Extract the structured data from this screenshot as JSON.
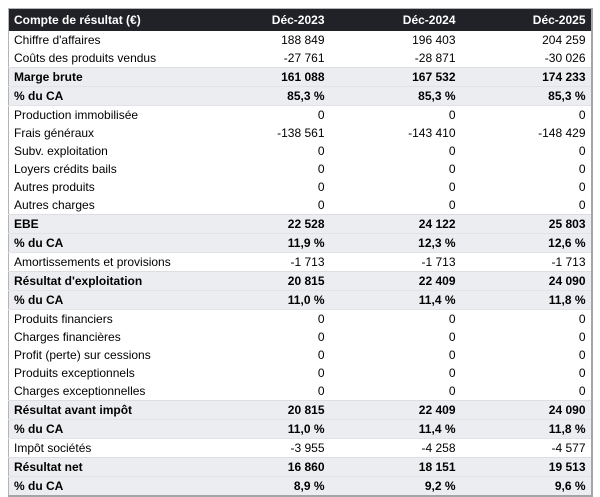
{
  "table": {
    "header": {
      "label": "Compte de résultat (€)",
      "columns": [
        "Déc-2023",
        "Déc-2024",
        "Déc-2025"
      ]
    },
    "rows": [
      {
        "label": "Chiffre d'affaires",
        "values": [
          "188 849",
          "196 403",
          "204 259"
        ],
        "emphasis": false
      },
      {
        "label": "Coûts des produits vendus",
        "values": [
          "-27 761",
          "-28 871",
          "-30 026"
        ],
        "emphasis": false
      },
      {
        "label": "Marge brute",
        "values": [
          "161 088",
          "167 532",
          "174 233"
        ],
        "emphasis": true
      },
      {
        "label": "% du CA",
        "values": [
          "85,3 %",
          "85,3 %",
          "85,3 %"
        ],
        "emphasis": true
      },
      {
        "label": "Production immobilisée",
        "values": [
          "0",
          "0",
          "0"
        ],
        "emphasis": false
      },
      {
        "label": "Frais généraux",
        "values": [
          "-138 561",
          "-143 410",
          "-148 429"
        ],
        "emphasis": false
      },
      {
        "label": "Subv. exploitation",
        "values": [
          "0",
          "0",
          "0"
        ],
        "emphasis": false
      },
      {
        "label": "Loyers crédits bails",
        "values": [
          "0",
          "0",
          "0"
        ],
        "emphasis": false
      },
      {
        "label": "Autres produits",
        "values": [
          "0",
          "0",
          "0"
        ],
        "emphasis": false
      },
      {
        "label": "Autres charges",
        "values": [
          "0",
          "0",
          "0"
        ],
        "emphasis": false
      },
      {
        "label": "EBE",
        "values": [
          "22 528",
          "24 122",
          "25 803"
        ],
        "emphasis": true
      },
      {
        "label": "% du CA",
        "values": [
          "11,9 %",
          "12,3 %",
          "12,6 %"
        ],
        "emphasis": true
      },
      {
        "label": "Amortissements et provisions",
        "values": [
          "-1 713",
          "-1 713",
          "-1 713"
        ],
        "emphasis": false
      },
      {
        "label": "Résultat d'exploitation",
        "values": [
          "20 815",
          "22 409",
          "24 090"
        ],
        "emphasis": true
      },
      {
        "label": "% du CA",
        "values": [
          "11,0 %",
          "11,4 %",
          "11,8 %"
        ],
        "emphasis": true
      },
      {
        "label": "Produits financiers",
        "values": [
          "0",
          "0",
          "0"
        ],
        "emphasis": false
      },
      {
        "label": "Charges financières",
        "values": [
          "0",
          "0",
          "0"
        ],
        "emphasis": false
      },
      {
        "label": "Profit (perte) sur cessions",
        "values": [
          "0",
          "0",
          "0"
        ],
        "emphasis": false
      },
      {
        "label": "Produits exceptionnels",
        "values": [
          "0",
          "0",
          "0"
        ],
        "emphasis": false
      },
      {
        "label": "Charges exceptionnelles",
        "values": [
          "0",
          "0",
          "0"
        ],
        "emphasis": false
      },
      {
        "label": "Résultat avant impôt",
        "values": [
          "20 815",
          "22 409",
          "24 090"
        ],
        "emphasis": true
      },
      {
        "label": "% du CA",
        "values": [
          "11,0 %",
          "11,4 %",
          "11,8 %"
        ],
        "emphasis": true
      },
      {
        "label": "Impôt sociétés",
        "values": [
          "-3 955",
          "-4 258",
          "-4 577"
        ],
        "emphasis": false
      },
      {
        "label": "Résultat net",
        "values": [
          "16 860",
          "18 151",
          "19 513"
        ],
        "emphasis": true
      },
      {
        "label": "% du CA",
        "values": [
          "8,9 %",
          "9,2 %",
          "9,6 %"
        ],
        "emphasis": true
      }
    ]
  },
  "colors": {
    "header_bg": "#212227",
    "header_text": "#ffffff",
    "emphasis_row_bg": "#ecedf0",
    "outer_border": "#a2a4a8"
  }
}
